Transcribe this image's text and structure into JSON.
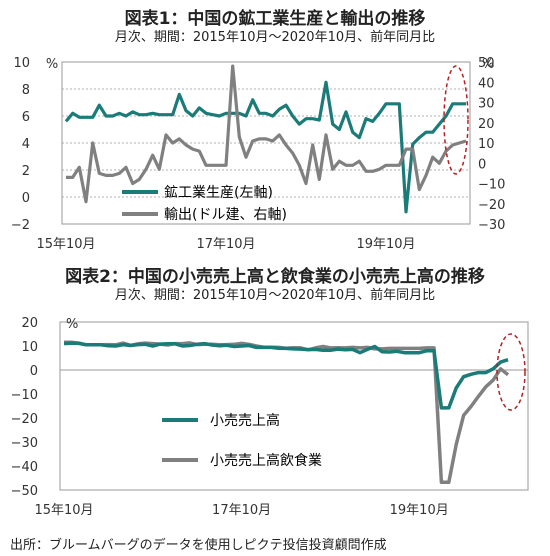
{
  "chart_data": [
    {
      "type": "line",
      "title": "図表1：中国の鉱工業生産と輸出の推移",
      "subtitle": "月次、期間：2015年10月〜2020年10月、前年同月比",
      "y_unit_left": "%",
      "y_unit_right": "%",
      "ylim_left": [
        -2,
        10
      ],
      "ylim_right": [
        -30,
        50
      ],
      "y_ticks_left": [
        "10",
        "8",
        "6",
        "4",
        "2",
        "0",
        "−2"
      ],
      "y_ticks_right": [
        "50",
        "40",
        "30",
        "20",
        "10",
        "0",
        "−10",
        "−20",
        "−30"
      ],
      "x_ticks": [
        "15年10月",
        "17年10月",
        "19年10月"
      ],
      "x_start": "2015-10",
      "x_end": "2020-10",
      "series": [
        {
          "name": "鉱工業生産(左軸)",
          "axis": "left",
          "color": "#1b7b78",
          "values": [
            5.6,
            6.2,
            5.9,
            5.9,
            5.9,
            6.8,
            6.0,
            6.0,
            6.2,
            6.0,
            6.3,
            6.1,
            6.1,
            6.2,
            6.1,
            6.1,
            6.1,
            7.6,
            6.4,
            6.0,
            6.6,
            6.2,
            6.1,
            6.0,
            6.2,
            6.2,
            6.2,
            6.0,
            7.2,
            6.2,
            6.2,
            6.0,
            6.5,
            6.8,
            6.0,
            5.4,
            5.8,
            5.8,
            5.7,
            8.5,
            5.4,
            5.0,
            6.3,
            4.8,
            4.4,
            5.8,
            5.6,
            6.2,
            6.9,
            6.9,
            6.9,
            -1.1,
            3.9,
            4.4,
            4.8,
            4.8,
            5.4,
            6.0,
            6.9,
            6.9,
            6.9
          ]
        },
        {
          "name": "輸出(ドル建、右軸)",
          "axis": "right",
          "color": "#808080",
          "values": [
            -7,
            -7,
            -2,
            -19,
            10,
            -5,
            -6,
            -6,
            -5,
            -2,
            -10,
            -8,
            -3,
            4,
            -3,
            14,
            10,
            12,
            9,
            7,
            6,
            -1,
            -1,
            -1,
            -1,
            48,
            13,
            3,
            11,
            12,
            12,
            11,
            14,
            9,
            5,
            -1,
            -10,
            9,
            -8,
            14,
            -3,
            1,
            -1,
            -1,
            1,
            -4,
            -4,
            -3,
            -1,
            -1,
            -1,
            7,
            7,
            -13,
            -6,
            3,
            0,
            6,
            9,
            10,
            11
          ]
        }
      ]
    },
    {
      "type": "line",
      "title": "図表2：中国の小売売上高と飲食業の小売売上高の推移",
      "subtitle": "月次、期間：2015年10月〜2020年10月、前年同月比",
      "y_unit": "%",
      "ylim": [
        -50,
        20
      ],
      "y_ticks": [
        "20",
        "10",
        "0",
        "−10",
        "−20",
        "−30",
        "−40",
        "−50"
      ],
      "x_ticks": [
        "15年10月",
        "17年10月",
        "19年10月"
      ],
      "x_start": "2015-10",
      "x_end": "2020-10",
      "series": [
        {
          "name": "小売売上高",
          "color": "#1b7b78",
          "values": [
            11.0,
            11.2,
            11.1,
            10.5,
            10.5,
            10.5,
            10.1,
            10.0,
            10.6,
            10.2,
            10.6,
            10.7,
            10.0,
            10.8,
            10.9,
            10.9,
            10.0,
            10.2,
            10.7,
            11.0,
            10.4,
            10.1,
            10.3,
            9.8,
            10.0,
            10.2,
            9.4,
            9.5,
            9.4,
            9.1,
            9.0,
            8.8,
            8.7,
            8.5,
            8.6,
            8.2,
            8.2,
            8.7,
            8.4,
            8.6,
            7.2,
            8.6,
            9.8,
            7.6,
            7.5,
            7.8,
            7.2,
            7.2,
            7.2,
            8.0,
            8.0,
            -15.8,
            -15.8,
            -7.5,
            -2.8,
            -1.8,
            -1.1,
            -1.1,
            0.5,
            3.3,
            4.3
          ]
        },
        {
          "name": "小売売上高飲食業",
          "color": "#808080",
          "values": [
            11.6,
            11.6,
            11.2,
            10.5,
            10.5,
            10.5,
            10.6,
            10.5,
            11.2,
            10.3,
            10.9,
            11.2,
            11.0,
            10.8,
            10.4,
            11.0,
            11.0,
            11.3,
            10.6,
            10.7,
            10.7,
            10.5,
            10.6,
            10.7,
            11.1,
            10.7,
            10.0,
            9.5,
            9.5,
            9.4,
            9.1,
            9.3,
            9.2,
            8.4,
            9.2,
            9.8,
            9.2,
            9.3,
            9.2,
            9.4,
            9.2,
            9.4,
            8.8,
            8.8,
            9.0,
            9.0,
            9.0,
            9.0,
            9.0,
            9.2,
            9.2,
            -46.8,
            -46.8,
            -31.1,
            -18.9,
            -15.2,
            -11.0,
            -7.0,
            -4.2,
            0.5,
            -2.0
          ]
        }
      ]
    }
  ],
  "source": "出所：ブルームバーグのデータを使用しピクテ投信投資顧問作成"
}
